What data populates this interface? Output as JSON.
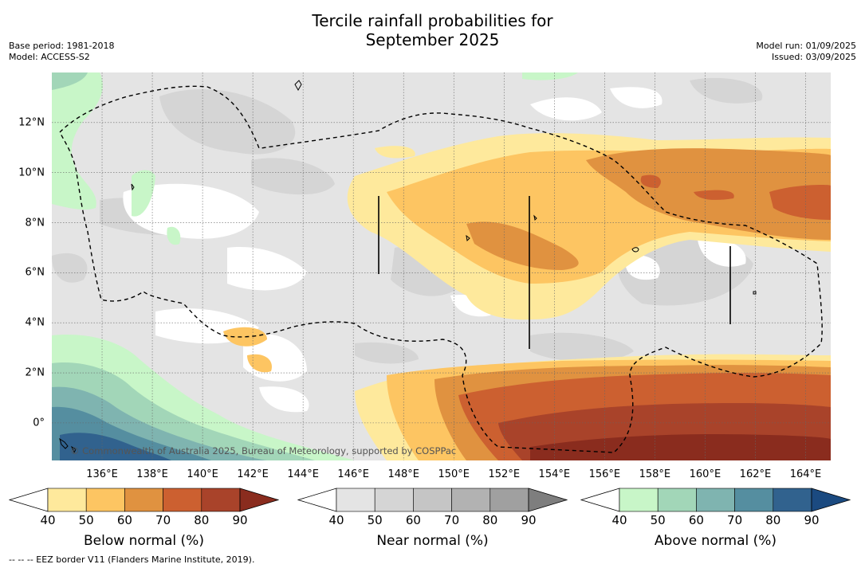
{
  "title_line1": "Tercile rainfall probabilities for",
  "title_line2": "September 2025",
  "meta": {
    "base_period": "Base period: 1981-2018",
    "model": "Model: ACCESS-S2",
    "model_run": "Model run: 01/09/2025",
    "issued": "Issued: 03/09/2025"
  },
  "map": {
    "lat_labels": [
      "12°N",
      "10°N",
      "8°N",
      "6°N",
      "4°N",
      "2°N",
      "0°"
    ],
    "lon_labels": [
      "136°E",
      "138°E",
      "140°E",
      "142°E",
      "144°E",
      "146°E",
      "148°E",
      "150°E",
      "152°E",
      "154°E",
      "156°E",
      "158°E",
      "160°E",
      "162°E",
      "164°E"
    ],
    "copyright": "© Commonwealth of Australia 2025, Bureau of Meteorology, supported by COSPPac",
    "lon_range": [
      134.0,
      165.0
    ],
    "lat_range": [
      -1.5,
      14.0
    ]
  },
  "colorbars": [
    {
      "label": "Below normal (%)",
      "ticks": [
        "40",
        "50",
        "60",
        "70",
        "80",
        "90"
      ],
      "colors": [
        "#ffffff",
        "#fee99c",
        "#fdc562",
        "#e09240",
        "#cc6030",
        "#a9432a",
        "#8a2c1e"
      ]
    },
    {
      "label": "Near normal (%)",
      "ticks": [
        "40",
        "50",
        "60",
        "70",
        "80",
        "90"
      ],
      "colors": [
        "#ffffff",
        "#e4e4e4",
        "#d5d5d5",
        "#c5c5c5",
        "#b2b2b2",
        "#a0a0a0",
        "#7e7e7e"
      ]
    },
    {
      "label": "Above normal (%)",
      "ticks": [
        "40",
        "50",
        "60",
        "70",
        "80",
        "90"
      ],
      "colors": [
        "#ffffff",
        "#c8f6c8",
        "#a2d6b8",
        "#7fb4b0",
        "#558ea0",
        "#31628e",
        "#1b4a80"
      ]
    }
  ],
  "footnote": "--  --  -- EEZ border V11 (Flanders Marine Institute, 2019)."
}
